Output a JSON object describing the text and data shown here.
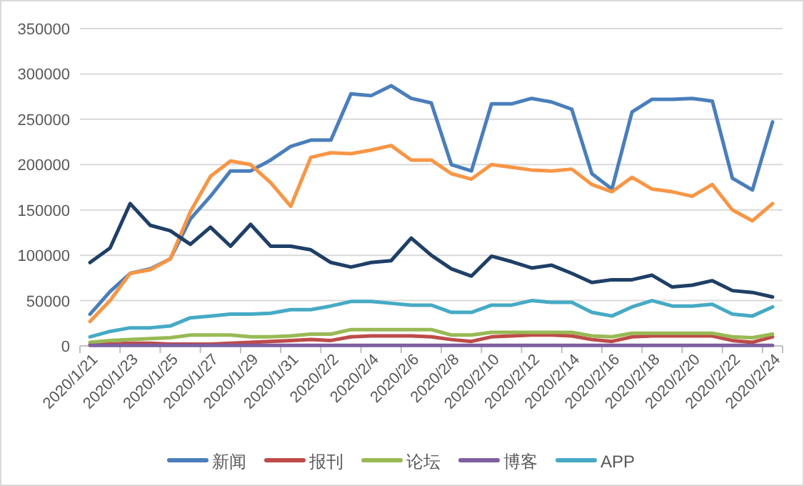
{
  "chart_data": {
    "type": "line",
    "categories": [
      "2020/1/21",
      null,
      "2020/1/23",
      null,
      "2020/1/25",
      null,
      "2020/1/27",
      null,
      "2020/1/29",
      null,
      "2020/1/31",
      null,
      "2020/2/2",
      null,
      "2020/2/4",
      null,
      "2020/2/6",
      null,
      "2020/2/8",
      null,
      "2020/2/10",
      null,
      "2020/2/12",
      null,
      "2020/2/14",
      null,
      "2020/2/16",
      null,
      "2020/2/18",
      null,
      "2020/2/20",
      null,
      "2020/2/22",
      null,
      "2020/2/24"
    ],
    "series": [
      {
        "name": "新闻",
        "color": "#4a7ebb",
        "values": [
          35000,
          60000,
          80000,
          85000,
          96000,
          140000,
          165000,
          193000,
          193000,
          205000,
          220000,
          227000,
          227000,
          278000,
          276000,
          287000,
          273000,
          268000,
          200000,
          193000,
          267000,
          267000,
          273000,
          269000,
          261000,
          190000,
          173000,
          258000,
          272000,
          272000,
          273000,
          270000,
          185000,
          172000,
          247000
        ]
      },
      {
        "name": "报刊",
        "color": "#be4b48",
        "values": [
          2000,
          2000,
          3000,
          3000,
          2000,
          2000,
          2000,
          3000,
          4000,
          5000,
          6000,
          7000,
          6000,
          10000,
          11000,
          11000,
          11000,
          10000,
          7000,
          5000,
          10000,
          11000,
          12000,
          12000,
          11000,
          7000,
          5000,
          10000,
          11000,
          11000,
          11000,
          11000,
          6000,
          4000,
          10000
        ]
      },
      {
        "name": "论坛",
        "color": "#98b954",
        "values": [
          4000,
          6000,
          7000,
          8000,
          9000,
          12000,
          12000,
          12000,
          10000,
          10000,
          11000,
          13000,
          13000,
          18000,
          18000,
          18000,
          18000,
          18000,
          12000,
          12000,
          15000,
          15000,
          15000,
          15000,
          15000,
          11000,
          10000,
          14000,
          14000,
          14000,
          14000,
          14000,
          10000,
          9000,
          13000
        ]
      },
      {
        "name": "博客",
        "color": "#7d60a0",
        "values": [
          500,
          500,
          500,
          500,
          500,
          500,
          500,
          500,
          500,
          500,
          500,
          500,
          500,
          500,
          500,
          500,
          500,
          500,
          500,
          500,
          500,
          500,
          500,
          500,
          500,
          500,
          500,
          500,
          500,
          500,
          500,
          500,
          500,
          500,
          500
        ]
      },
      {
        "name": "APP",
        "color": "#46aac5",
        "values": [
          10000,
          16000,
          20000,
          20000,
          22000,
          31000,
          33000,
          35000,
          35000,
          36000,
          40000,
          40000,
          44000,
          49000,
          49000,
          47000,
          45000,
          45000,
          37000,
          37000,
          45000,
          45000,
          50000,
          48000,
          48000,
          37000,
          33000,
          43000,
          50000,
          44000,
          44000,
          46000,
          35000,
          33000,
          43000
        ]
      },
      {
        "color": "#f79646",
        "values": [
          27000,
          50000,
          80000,
          84000,
          96000,
          148000,
          187000,
          204000,
          200000,
          180000,
          154000,
          208000,
          213000,
          212000,
          216000,
          221000,
          205000,
          205000,
          190000,
          184000,
          200000,
          197000,
          194000,
          193000,
          195000,
          178000,
          170000,
          186000,
          173000,
          170000,
          165000,
          178000,
          150000,
          138000,
          157000
        ]
      },
      {
        "color": "#1f3f66",
        "values": [
          92000,
          108000,
          157000,
          133000,
          127000,
          112000,
          131000,
          110000,
          134000,
          110000,
          110000,
          106000,
          92000,
          87000,
          92000,
          94000,
          119000,
          100000,
          85000,
          77000,
          99000,
          93000,
          86000,
          89000,
          80000,
          70000,
          73000,
          73000,
          78000,
          65000,
          67000,
          72000,
          61000,
          59000,
          54000
        ]
      }
    ],
    "ylim": [
      0,
      350000
    ],
    "yticks": [
      0,
      50000,
      100000,
      150000,
      200000,
      250000,
      300000,
      350000
    ],
    "grid": "y",
    "legend": "bottom",
    "marker": "none",
    "line_style": "solid"
  }
}
